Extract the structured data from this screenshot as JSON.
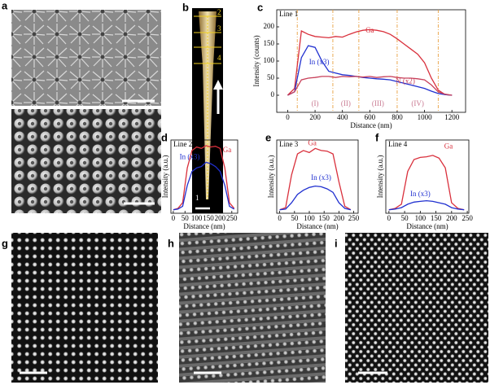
{
  "panel_labels": [
    "a",
    "b",
    "c",
    "d",
    "e",
    "f",
    "g",
    "h",
    "i"
  ],
  "panel_b_markers": [
    "1",
    "2",
    "3",
    "4"
  ],
  "chart_data": [
    {
      "type": "line",
      "title": "Line 1",
      "xlabel": "Distance (nm)",
      "ylabel": "Intensity (counts)",
      "x": [
        0,
        50,
        100,
        150,
        200,
        250,
        300,
        350,
        400,
        450,
        500,
        550,
        600,
        650,
        700,
        750,
        800,
        850,
        900,
        950,
        1000,
        1050,
        1100,
        1150,
        1200
      ],
      "series": [
        {
          "name": "Ga",
          "color": "#d9303c",
          "values": [
            0,
            20,
            188,
            178,
            172,
            170,
            168,
            172,
            170,
            178,
            185,
            190,
            192,
            190,
            186,
            178,
            165,
            150,
            135,
            120,
            95,
            50,
            15,
            2,
            0
          ]
        },
        {
          "name": "In (x3)",
          "color": "#2030d0",
          "values": [
            0,
            10,
            110,
            145,
            140,
            100,
            70,
            65,
            60,
            58,
            55,
            52,
            50,
            48,
            47,
            45,
            40,
            35,
            30,
            25,
            20,
            12,
            5,
            2,
            0
          ]
        },
        {
          "name": "N (x2)",
          "color": "#c8405a",
          "values": [
            0,
            10,
            45,
            50,
            52,
            55,
            55,
            52,
            55,
            54,
            55,
            53,
            55,
            52,
            54,
            55,
            52,
            50,
            50,
            48,
            45,
            30,
            10,
            3,
            0
          ]
        }
      ],
      "xlim": [
        -80,
        1300
      ],
      "ylim": [
        -50,
        250
      ],
      "xticks": [
        0,
        200,
        400,
        600,
        800,
        1000,
        1200
      ],
      "yticks": [
        0,
        50,
        100,
        150,
        200
      ],
      "dividers": [
        70,
        330,
        520,
        800,
        1100
      ],
      "divider_color": "#e8a040",
      "regions": [
        "(I)",
        "(II)",
        "(III)",
        "(IV)"
      ],
      "region_color": "#c87890"
    },
    {
      "type": "line",
      "title": "Line 2",
      "xlabel": "Distance (nm)",
      "ylabel": "Intensity (a.u.)",
      "x": [
        0,
        20,
        40,
        60,
        80,
        100,
        120,
        140,
        160,
        180,
        200,
        220,
        240,
        260
      ],
      "series": [
        {
          "name": "Ga",
          "color": "#d9303c",
          "values": [
            0,
            2,
            10,
            60,
            85,
            90,
            88,
            92,
            90,
            91,
            88,
            60,
            10,
            2
          ]
        },
        {
          "name": "In (x3)",
          "color": "#2030d0",
          "values": [
            0,
            1,
            5,
            35,
            55,
            60,
            62,
            68,
            66,
            62,
            55,
            35,
            5,
            1
          ]
        }
      ],
      "xlim": [
        -10,
        275
      ],
      "ylim": [
        -5,
        100
      ],
      "xticks": [
        0,
        50,
        100,
        150,
        200,
        250
      ]
    },
    {
      "type": "line",
      "title": "Line 3",
      "xlabel": "Distance (nm)",
      "ylabel": "Intensity (a.u.)",
      "x": [
        0,
        20,
        40,
        60,
        80,
        100,
        120,
        140,
        160,
        180,
        200,
        220,
        240
      ],
      "series": [
        {
          "name": "Ga",
          "color": "#d9303c",
          "values": [
            0,
            3,
            50,
            80,
            85,
            82,
            88,
            85,
            84,
            80,
            40,
            5,
            0
          ]
        },
        {
          "name": "In (x3)",
          "color": "#2030d0",
          "values": [
            0,
            1,
            10,
            22,
            28,
            32,
            34,
            33,
            30,
            25,
            10,
            2,
            0
          ]
        }
      ],
      "xlim": [
        -10,
        265
      ],
      "ylim": [
        -5,
        100
      ],
      "xticks": [
        0,
        50,
        100,
        150,
        200,
        250
      ]
    },
    {
      "type": "line",
      "title": "Line 4",
      "xlabel": "Distance (nm)",
      "ylabel": "Intensity (a.u.)",
      "x": [
        0,
        20,
        40,
        60,
        80,
        100,
        120,
        140,
        160,
        180,
        200,
        220,
        240
      ],
      "series": [
        {
          "name": "Ga",
          "color": "#d9303c",
          "values": [
            0,
            2,
            8,
            55,
            72,
            75,
            76,
            78,
            74,
            60,
            10,
            2,
            0
          ]
        },
        {
          "name": "In (x3)",
          "color": "#2030d0",
          "values": [
            0,
            1,
            3,
            8,
            11,
            12,
            13,
            12,
            10,
            8,
            3,
            1,
            0
          ]
        }
      ],
      "xlim": [
        -10,
        255
      ],
      "ylim": [
        -5,
        100
      ],
      "xticks": [
        0,
        50,
        100,
        150,
        200,
        250
      ]
    }
  ]
}
